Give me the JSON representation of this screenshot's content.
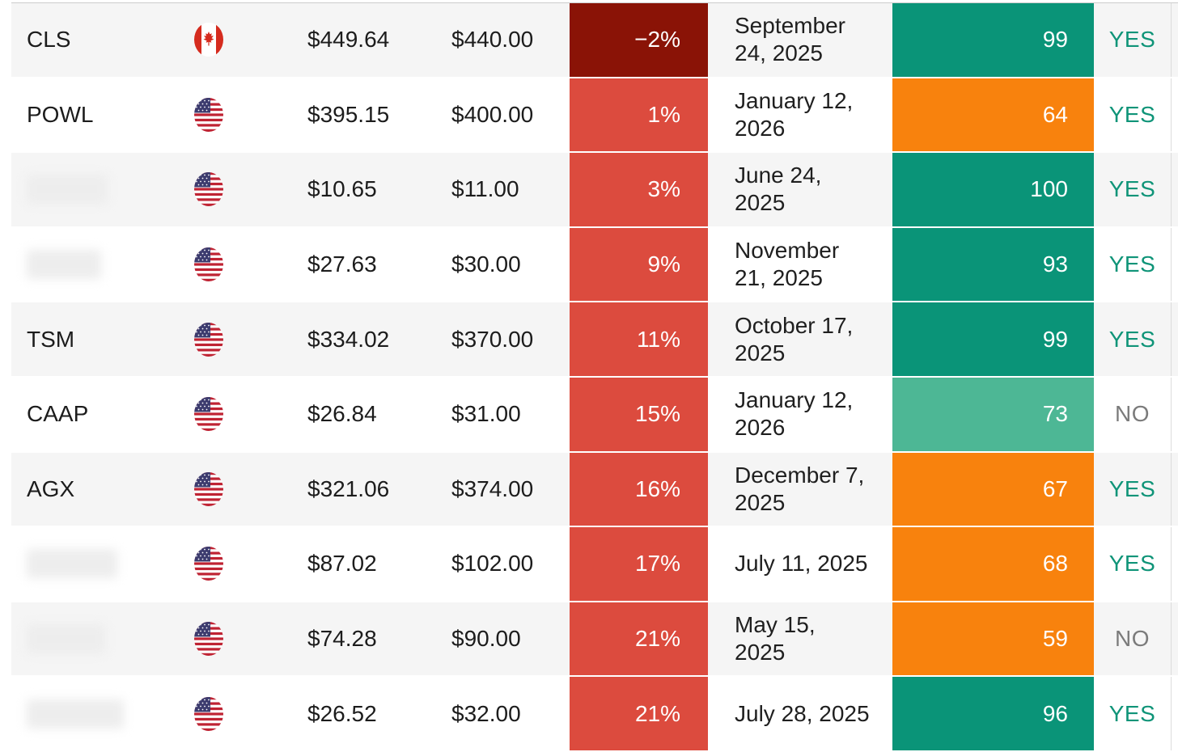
{
  "table": {
    "column_semantics": [
      "ticker",
      "country",
      "current-price",
      "target-price",
      "percent-to-target",
      "date",
      "score",
      "decision"
    ],
    "colors": {
      "dark_red": "#8A1306",
      "red": "#DC4B3E",
      "teal": "#0A9478",
      "light_teal": "#4DB795",
      "orange": "#F8820D",
      "yes_text": "#0F9478",
      "no_text": "#7B7B7B",
      "row_alt_bg": "#F5F5F5",
      "row_bg": "#FFFFFF"
    },
    "flags": {
      "canada": "canada-flag-icon",
      "us": "us-flag-icon"
    },
    "rows": [
      {
        "ticker": "CLS",
        "redacted": false,
        "blur_width": 0,
        "flag": "canada",
        "price": "$449.64",
        "target": "$440.00",
        "percent": "−2%",
        "percent_color": "dark_red",
        "date": "September 24, 2025",
        "score": "99",
        "score_color": "teal",
        "decision": "YES"
      },
      {
        "ticker": "POWL",
        "redacted": false,
        "blur_width": 0,
        "flag": "us",
        "price": "$395.15",
        "target": "$400.00",
        "percent": "1%",
        "percent_color": "red",
        "date": "January 12, 2026",
        "score": "64",
        "score_color": "orange",
        "decision": "YES"
      },
      {
        "ticker": "",
        "redacted": true,
        "blur_width": 100,
        "flag": "us",
        "price": "$10.65",
        "target": "$11.00",
        "percent": "3%",
        "percent_color": "red",
        "date": "June 24, 2025",
        "score": "100",
        "score_color": "teal",
        "decision": "YES"
      },
      {
        "ticker": "",
        "redacted": true,
        "blur_width": 92,
        "flag": "us",
        "price": "$27.63",
        "target": "$30.00",
        "percent": "9%",
        "percent_color": "red",
        "date": "November 21, 2025",
        "score": "93",
        "score_color": "teal",
        "decision": "YES"
      },
      {
        "ticker": "TSM",
        "redacted": false,
        "blur_width": 0,
        "flag": "us",
        "price": "$334.02",
        "target": "$370.00",
        "percent": "11%",
        "percent_color": "red",
        "date": "October 17, 2025",
        "score": "99",
        "score_color": "teal",
        "decision": "YES"
      },
      {
        "ticker": "CAAP",
        "redacted": false,
        "blur_width": 0,
        "flag": "us",
        "price": "$26.84",
        "target": "$31.00",
        "percent": "15%",
        "percent_color": "red",
        "date": "January 12, 2026",
        "score": "73",
        "score_color": "light_teal",
        "decision": "NO"
      },
      {
        "ticker": "AGX",
        "redacted": false,
        "blur_width": 0,
        "flag": "us",
        "price": "$321.06",
        "target": "$374.00",
        "percent": "16%",
        "percent_color": "red",
        "date": "December 7, 2025",
        "score": "67",
        "score_color": "orange",
        "decision": "YES"
      },
      {
        "ticker": "",
        "redacted": true,
        "blur_width": 112,
        "flag": "us",
        "price": "$87.02",
        "target": "$102.00",
        "percent": "17%",
        "percent_color": "red",
        "date": "July 11, 2025",
        "score": "68",
        "score_color": "orange",
        "decision": "YES"
      },
      {
        "ticker": "",
        "redacted": true,
        "blur_width": 97,
        "flag": "us",
        "price": "$74.28",
        "target": "$90.00",
        "percent": "21%",
        "percent_color": "red",
        "date": "May 15, 2025",
        "score": "59",
        "score_color": "orange",
        "decision": "NO"
      },
      {
        "ticker": "",
        "redacted": true,
        "blur_width": 120,
        "flag": "us",
        "price": "$26.52",
        "target": "$32.00",
        "percent": "21%",
        "percent_color": "red",
        "date": "July 28, 2025",
        "score": "96",
        "score_color": "teal",
        "decision": "YES"
      }
    ]
  }
}
